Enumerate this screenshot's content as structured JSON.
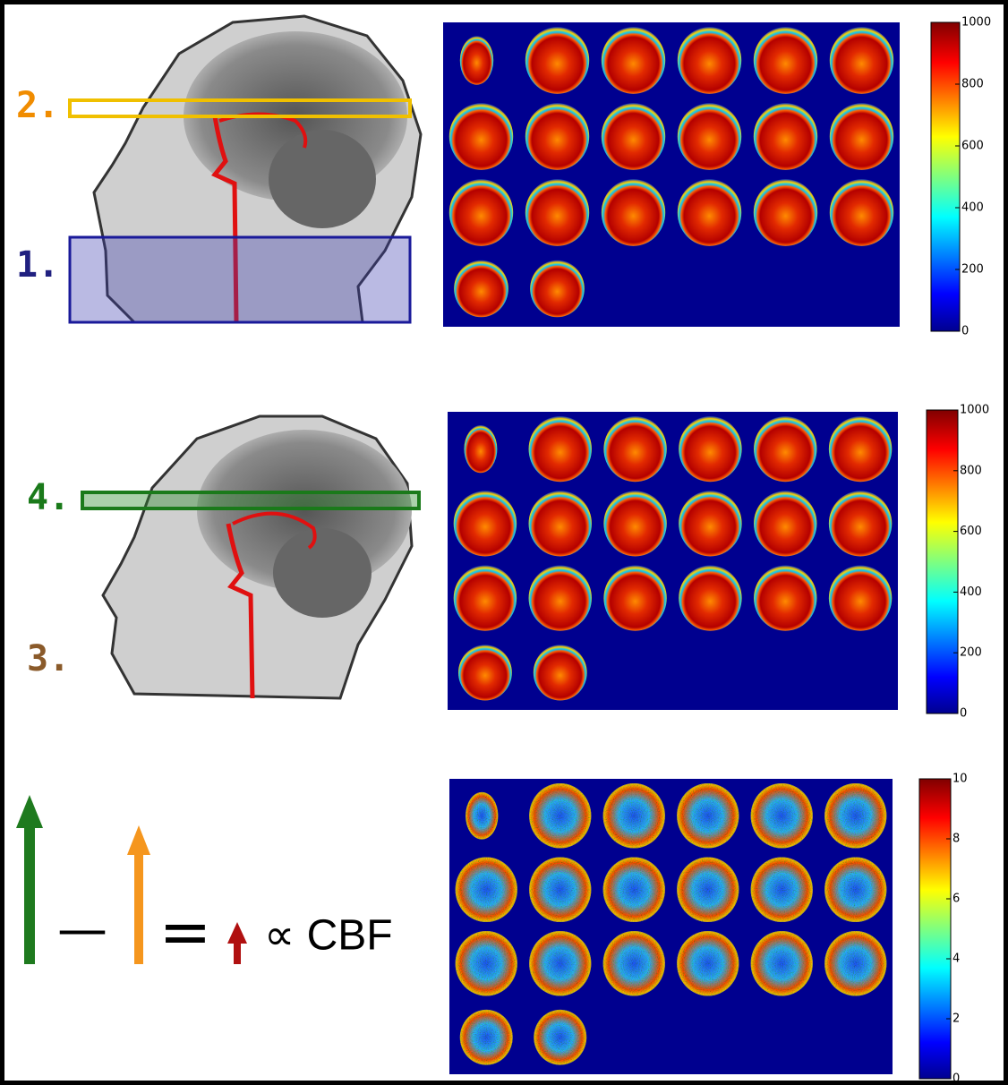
{
  "labels": {
    "step_2": "2.",
    "step_1": "1.",
    "step_4": "4.",
    "step_3": "3.",
    "minus": "—",
    "equals": "=",
    "formula": "∝ CBF"
  },
  "panels": [
    {
      "colorbar": {
        "range": [
          0,
          1000
        ],
        "ticks": [
          0,
          200,
          400,
          600,
          800,
          1000
        ]
      }
    },
    {
      "colorbar": {
        "range": [
          0,
          1000
        ],
        "ticks": [
          0,
          200,
          400,
          600,
          800,
          1000
        ]
      }
    },
    {
      "colorbar": {
        "range": [
          0,
          10
        ],
        "ticks": [
          0,
          2,
          4,
          6,
          8,
          10
        ]
      }
    }
  ]
}
